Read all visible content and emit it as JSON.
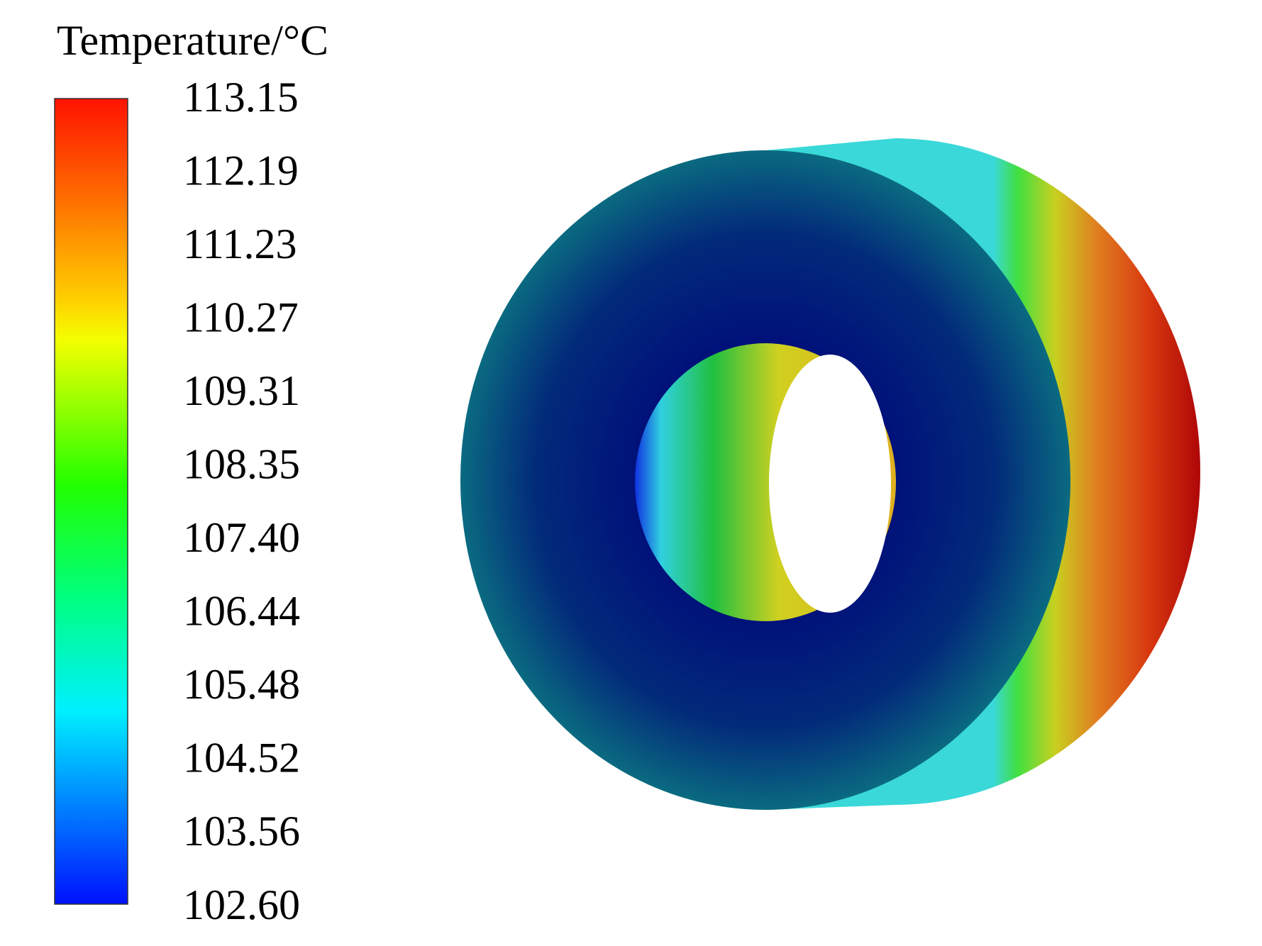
{
  "legend": {
    "title": "Temperature/°C",
    "labels": [
      "113.15",
      "112.19",
      "111.23",
      "110.27",
      "109.31",
      "108.35",
      "107.40",
      "106.44",
      "105.48",
      "104.52",
      "103.56",
      "102.60"
    ]
  }
}
